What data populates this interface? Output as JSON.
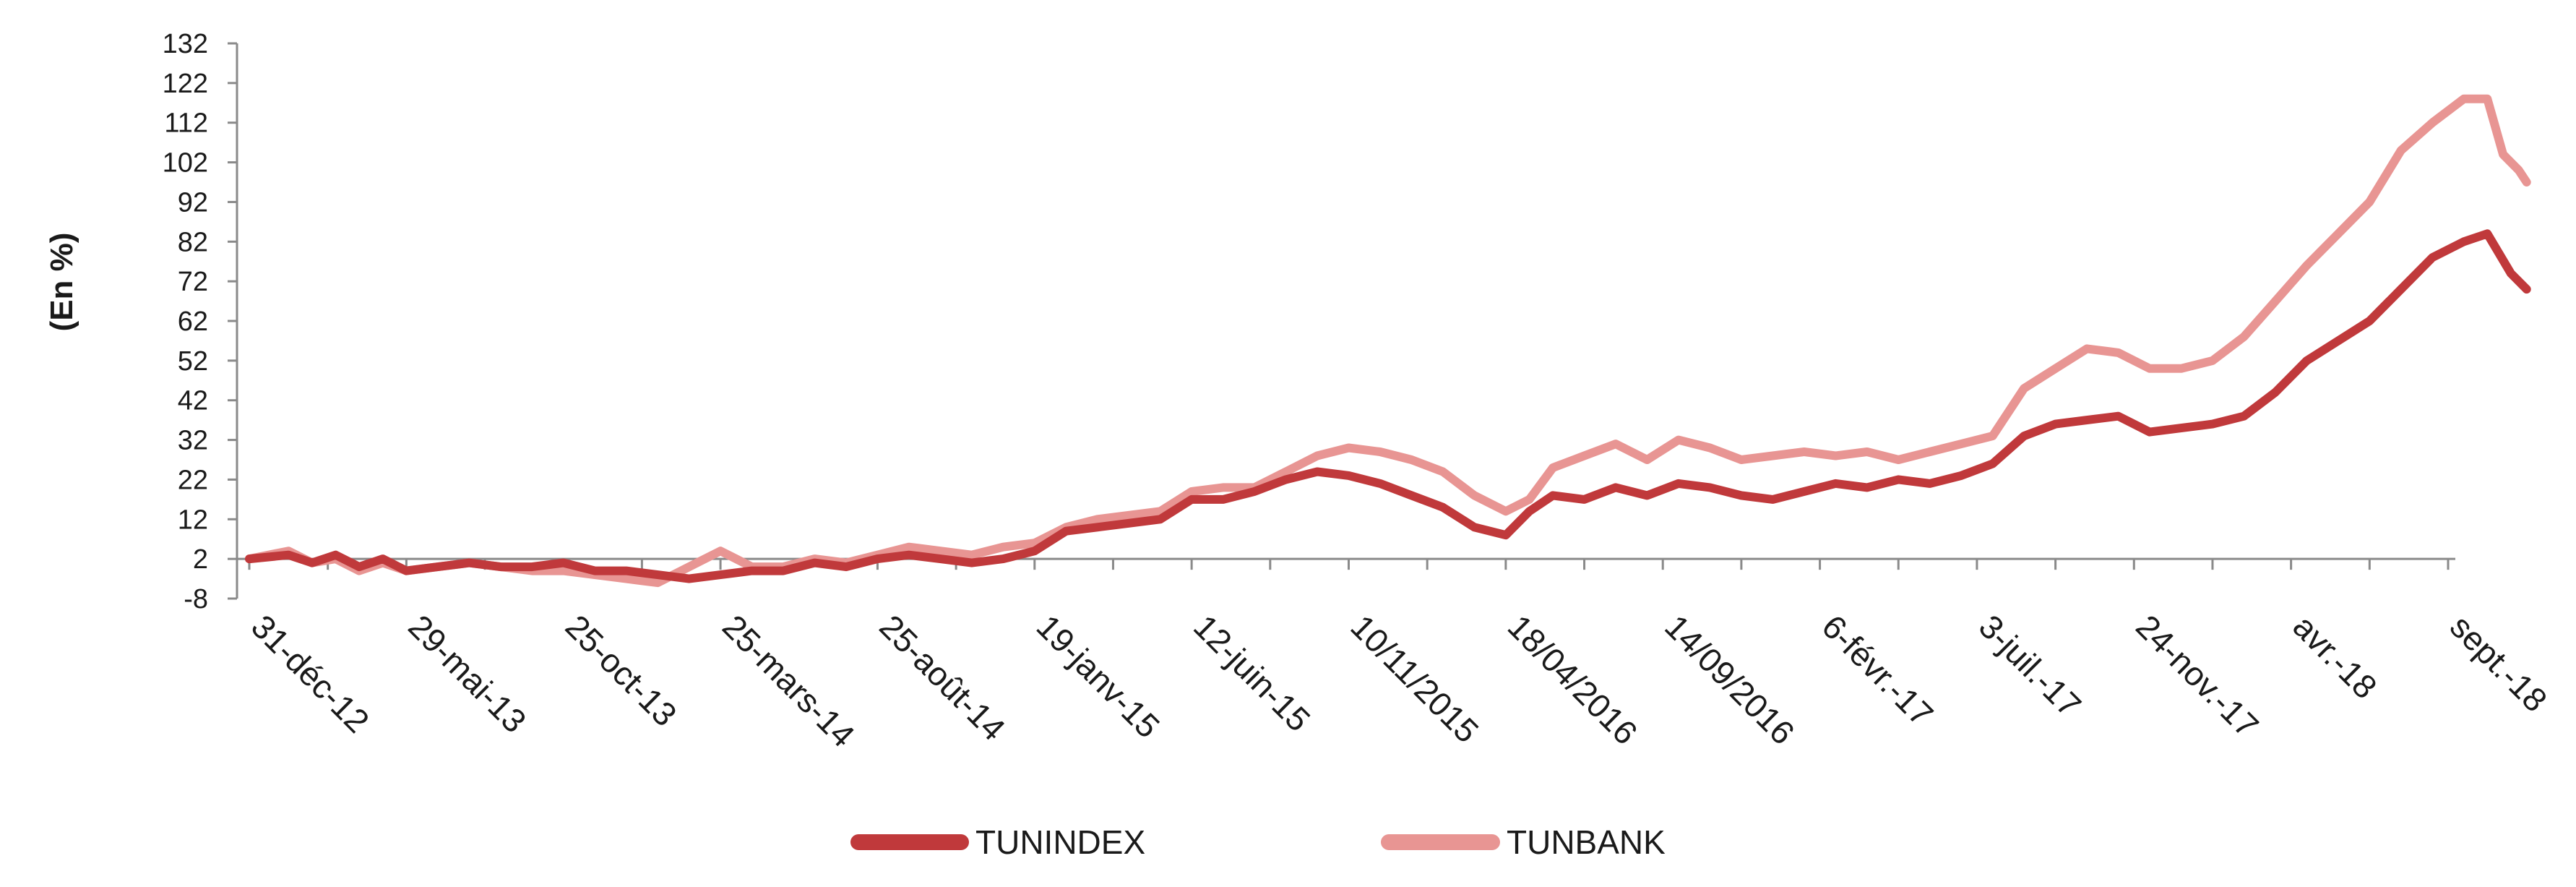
{
  "chart_data": {
    "type": "line",
    "title": "",
    "xlabel": "",
    "ylabel": "(En %)",
    "ylim": [
      -8,
      132
    ],
    "yticks": [
      -8,
      2,
      12,
      22,
      32,
      42,
      52,
      62,
      72,
      82,
      92,
      102,
      112,
      122,
      132
    ],
    "x_tick_labels": [
      "31-déc-12",
      "29-mai-13",
      "25-oct-13",
      "25-mars-14",
      "25-août-14",
      "19-janv-15",
      "12-juin-15",
      "10/11/2015",
      "18/04/2016",
      "14/09/2016",
      "6-févr.-17",
      "3-juil.-17",
      "24-nov.-17",
      "avr.-18",
      "sept.-18"
    ],
    "grid": false,
    "legend_position": "bottom",
    "colors": {
      "TUNINDEX": "#c0393b",
      "TUNBANK": "#e89593"
    },
    "series": [
      {
        "name": "TUNINDEX",
        "values": [
          [
            0,
            2
          ],
          [
            0.25,
            3
          ],
          [
            0.4,
            1
          ],
          [
            0.55,
            3
          ],
          [
            0.7,
            0
          ],
          [
            0.85,
            2
          ],
          [
            1.0,
            -1
          ],
          [
            1.2,
            0
          ],
          [
            1.4,
            1
          ],
          [
            1.6,
            0
          ],
          [
            1.8,
            0
          ],
          [
            2.0,
            1
          ],
          [
            2.2,
            -1
          ],
          [
            2.4,
            -1
          ],
          [
            2.6,
            -2
          ],
          [
            2.8,
            -3
          ],
          [
            3.0,
            -2
          ],
          [
            3.2,
            -1
          ],
          [
            3.4,
            -1
          ],
          [
            3.6,
            1
          ],
          [
            3.8,
            0
          ],
          [
            4.0,
            2
          ],
          [
            4.2,
            3
          ],
          [
            4.4,
            2
          ],
          [
            4.6,
            1
          ],
          [
            4.8,
            2
          ],
          [
            5.0,
            4
          ],
          [
            5.2,
            9
          ],
          [
            5.4,
            10
          ],
          [
            5.6,
            11
          ],
          [
            5.8,
            12
          ],
          [
            6.0,
            17
          ],
          [
            6.2,
            17
          ],
          [
            6.4,
            19
          ],
          [
            6.6,
            22
          ],
          [
            6.8,
            24
          ],
          [
            7.0,
            23
          ],
          [
            7.2,
            21
          ],
          [
            7.4,
            18
          ],
          [
            7.6,
            15
          ],
          [
            7.8,
            10
          ],
          [
            8.0,
            8
          ],
          [
            8.15,
            14
          ],
          [
            8.3,
            18
          ],
          [
            8.5,
            17
          ],
          [
            8.7,
            20
          ],
          [
            8.9,
            18
          ],
          [
            9.1,
            21
          ],
          [
            9.3,
            20
          ],
          [
            9.5,
            18
          ],
          [
            9.7,
            17
          ],
          [
            9.9,
            19
          ],
          [
            10.1,
            21
          ],
          [
            10.3,
            20
          ],
          [
            10.5,
            22
          ],
          [
            10.7,
            21
          ],
          [
            10.9,
            23
          ],
          [
            11.1,
            26
          ],
          [
            11.3,
            33
          ],
          [
            11.5,
            36
          ],
          [
            11.7,
            37
          ],
          [
            11.9,
            38
          ],
          [
            12.1,
            34
          ],
          [
            12.3,
            35
          ],
          [
            12.5,
            36
          ],
          [
            12.7,
            38
          ],
          [
            12.9,
            44
          ],
          [
            13.1,
            52
          ],
          [
            13.3,
            57
          ],
          [
            13.5,
            62
          ],
          [
            13.7,
            70
          ],
          [
            13.9,
            78
          ],
          [
            14.1,
            82
          ],
          [
            14.25,
            84
          ],
          [
            14.4,
            74
          ],
          [
            14.5,
            70
          ]
        ]
      },
      {
        "name": "TUNBANK",
        "values": [
          [
            0,
            2
          ],
          [
            0.25,
            4
          ],
          [
            0.4,
            1
          ],
          [
            0.55,
            2
          ],
          [
            0.7,
            -1
          ],
          [
            0.85,
            1
          ],
          [
            1.0,
            -1
          ],
          [
            1.2,
            0
          ],
          [
            1.4,
            1
          ],
          [
            1.6,
            0
          ],
          [
            1.8,
            -1
          ],
          [
            2.0,
            -1
          ],
          [
            2.2,
            -2
          ],
          [
            2.4,
            -3
          ],
          [
            2.6,
            -4
          ],
          [
            2.8,
            0
          ],
          [
            3.0,
            4
          ],
          [
            3.2,
            0
          ],
          [
            3.4,
            0
          ],
          [
            3.6,
            2
          ],
          [
            3.8,
            1
          ],
          [
            4.0,
            3
          ],
          [
            4.2,
            5
          ],
          [
            4.4,
            4
          ],
          [
            4.6,
            3
          ],
          [
            4.8,
            5
          ],
          [
            5.0,
            6
          ],
          [
            5.2,
            10
          ],
          [
            5.4,
            12
          ],
          [
            5.6,
            13
          ],
          [
            5.8,
            14
          ],
          [
            6.0,
            19
          ],
          [
            6.2,
            20
          ],
          [
            6.4,
            20
          ],
          [
            6.6,
            24
          ],
          [
            6.8,
            28
          ],
          [
            7.0,
            30
          ],
          [
            7.2,
            29
          ],
          [
            7.4,
            27
          ],
          [
            7.6,
            24
          ],
          [
            7.8,
            18
          ],
          [
            8.0,
            14
          ],
          [
            8.15,
            17
          ],
          [
            8.3,
            25
          ],
          [
            8.5,
            28
          ],
          [
            8.7,
            31
          ],
          [
            8.9,
            27
          ],
          [
            9.1,
            32
          ],
          [
            9.3,
            30
          ],
          [
            9.5,
            27
          ],
          [
            9.7,
            28
          ],
          [
            9.9,
            29
          ],
          [
            10.1,
            28
          ],
          [
            10.3,
            29
          ],
          [
            10.5,
            27
          ],
          [
            10.7,
            29
          ],
          [
            10.9,
            31
          ],
          [
            11.1,
            33
          ],
          [
            11.3,
            45
          ],
          [
            11.5,
            50
          ],
          [
            11.7,
            55
          ],
          [
            11.9,
            54
          ],
          [
            12.1,
            50
          ],
          [
            12.3,
            50
          ],
          [
            12.5,
            52
          ],
          [
            12.7,
            58
          ],
          [
            12.9,
            67
          ],
          [
            13.1,
            76
          ],
          [
            13.3,
            84
          ],
          [
            13.5,
            92
          ],
          [
            13.7,
            105
          ],
          [
            13.9,
            112
          ],
          [
            14.1,
            118
          ],
          [
            14.25,
            118
          ],
          [
            14.35,
            104
          ],
          [
            14.45,
            100
          ],
          [
            14.5,
            97
          ]
        ]
      }
    ]
  }
}
